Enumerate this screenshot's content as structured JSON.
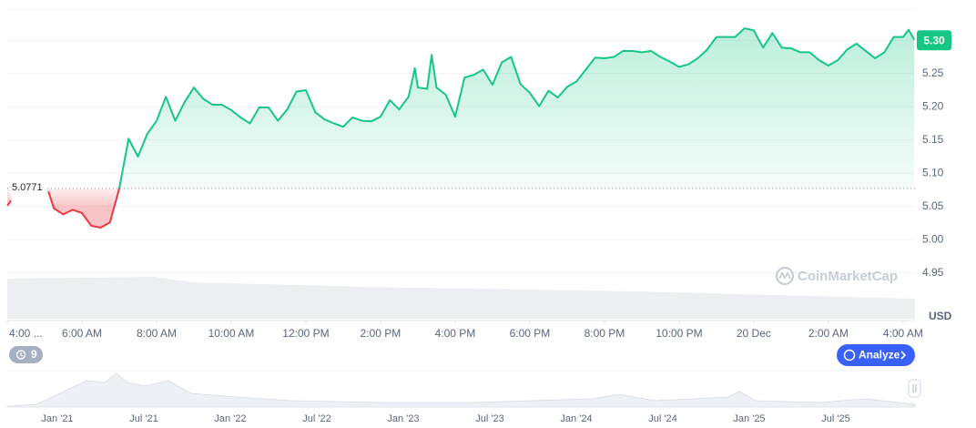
{
  "chart_data": {
    "type": "line",
    "color_up": "#16c784",
    "color_down": "#ea3943",
    "x": [
      4,
      4.1,
      4.6,
      5.1,
      5.25,
      5.5,
      5.75,
      6,
      6.25,
      6.5,
      6.75,
      7,
      7.25,
      7.5,
      7.75,
      8,
      8.25,
      8.5,
      8.75,
      9,
      9.25,
      9.5,
      9.75,
      10,
      10.25,
      10.5,
      10.75,
      11,
      11.25,
      11.5,
      11.75,
      12,
      12.25,
      12.5,
      12.75,
      13,
      13.25,
      13.5,
      13.75,
      14,
      14.25,
      14.5,
      14.75,
      14.92,
      15,
      15.25,
      15.37,
      15.5,
      15.75,
      16,
      16.25,
      16.5,
      16.75,
      17,
      17.25,
      17.5,
      17.75,
      18,
      18.25,
      18.5,
      18.75,
      19,
      19.25,
      19.5,
      19.75,
      20,
      20.25,
      20.5,
      20.75,
      21,
      21.25,
      21.5,
      21.75,
      22,
      22.25,
      22.5,
      22.75,
      23,
      23.25,
      23.5,
      23.75,
      24,
      24.25,
      24.5,
      24.75,
      25,
      25.25,
      25.5,
      25.75,
      26,
      26.25,
      26.5,
      26.75,
      27,
      27.25,
      27.5,
      27.75,
      28,
      28.15,
      28.3
    ],
    "values": [
      5.051,
      5.059,
      null,
      5.073,
      5.047,
      5.038,
      5.045,
      5.04,
      5.021,
      5.018,
      5.026,
      5.077,
      5.152,
      5.125,
      5.159,
      5.179,
      5.215,
      5.179,
      5.207,
      5.229,
      5.212,
      5.203,
      5.203,
      5.195,
      5.184,
      5.175,
      5.199,
      5.199,
      5.179,
      5.196,
      5.223,
      5.225,
      5.192,
      5.181,
      5.175,
      5.17,
      5.184,
      5.179,
      5.178,
      5.185,
      5.21,
      5.196,
      5.215,
      5.258,
      5.229,
      5.227,
      5.278,
      5.229,
      5.218,
      5.185,
      5.244,
      5.248,
      5.256,
      5.233,
      5.267,
      5.275,
      5.234,
      5.221,
      5.201,
      5.224,
      5.214,
      5.23,
      5.238,
      5.256,
      5.274,
      5.273,
      5.275,
      5.284,
      5.284,
      5.282,
      5.284,
      5.275,
      5.268,
      5.26,
      5.264,
      5.273,
      5.286,
      5.305,
      5.305,
      5.305,
      5.318,
      5.315,
      5.289,
      5.311,
      5.289,
      5.288,
      5.282,
      5.282,
      5.27,
      5.262,
      5.27,
      5.286,
      5.295,
      5.284,
      5.273,
      5.282,
      5.305,
      5.305,
      5.316,
      5.301
    ],
    "baseline": 5.0771,
    "current_price": {
      "value": 5.3,
      "label": "5.30"
    },
    "currency": "USD",
    "xlim": [
      4,
      28.32
    ],
    "ylim": [
      4.881,
      5.347
    ],
    "xticks": [
      {
        "value": 4,
        "label": "4:00 ..."
      },
      {
        "value": 6,
        "label": "6:00 AM"
      },
      {
        "value": 8,
        "label": "8:00 AM"
      },
      {
        "value": 10,
        "label": "10:00 AM"
      },
      {
        "value": 12,
        "label": "12:00 PM"
      },
      {
        "value": 14,
        "label": "2:00 PM"
      },
      {
        "value": 16,
        "label": "4:00 PM"
      },
      {
        "value": 18,
        "label": "6:00 PM"
      },
      {
        "value": 20,
        "label": "8:00 PM"
      },
      {
        "value": 22,
        "label": "10:00 PM"
      },
      {
        "value": 24,
        "label": "20 Dec"
      },
      {
        "value": 26,
        "label": "2:00 AM"
      },
      {
        "value": 28,
        "label": "4:00 AM"
      }
    ],
    "yticks": [
      4.95,
      {
        "value": 5.0,
        "label": "5.00"
      },
      5.05,
      {
        "value": 5.1,
        "label": "5.10"
      },
      5.15,
      {
        "value": 5.2,
        "label": "5.20"
      },
      5.25,
      {
        "value": 5.3,
        "label": "5.30"
      }
    ],
    "grid": true,
    "watermark": "CoinMarketCap"
  },
  "controls": {
    "history_count": 9,
    "analyze": "Analyze"
  },
  "navigator": {
    "labels": [
      "Jan '21",
      "Jul '21",
      "Jan '22",
      "Jul '22",
      "Jan '23",
      "Jul '23",
      "Jan '24",
      "Jul '24",
      "Jan '25",
      "Jul '25"
    ]
  }
}
